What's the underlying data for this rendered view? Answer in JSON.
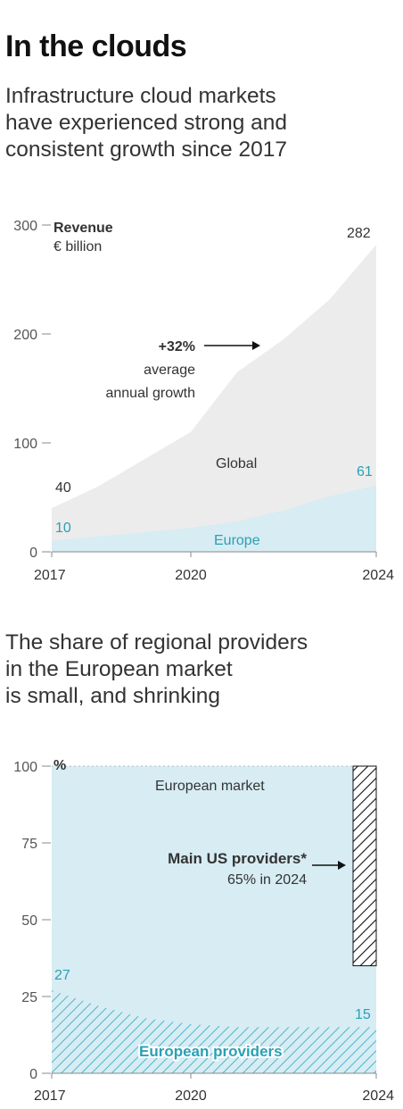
{
  "title": "In the clouds",
  "subtitle1": [
    "Infrastructure cloud markets",
    "have experienced strong and",
    "consistent growth since 2017"
  ],
  "subtitle2": [
    "The share of regional providers",
    "in the European market",
    "is small, and shrinking"
  ],
  "colors": {
    "global_fill": "#ececec",
    "europe_fill": "#d7ecf3",
    "teal_text": "#2aa0b5",
    "hatch": "#111111",
    "eu_hatch": "#4cb7cb",
    "axis": "#888888"
  },
  "chart_data": [
    {
      "type": "area",
      "ylabel": "Revenue",
      "yunit": "€ billion",
      "ylim": [
        0,
        300
      ],
      "yticks": [
        0,
        100,
        200,
        300
      ],
      "x": [
        2017,
        2018,
        2019,
        2020,
        2021,
        2022,
        2023,
        2024
      ],
      "xticks": [
        2017,
        2020,
        2024
      ],
      "series": [
        {
          "name": "Global",
          "values": [
            40,
            60,
            85,
            110,
            165,
            195,
            232,
            282
          ]
        },
        {
          "name": "Europe",
          "values": [
            10,
            14,
            18,
            22,
            28,
            38,
            51,
            61
          ]
        }
      ],
      "annotations": {
        "global_start": "40",
        "global_end": "282",
        "europe_start": "10",
        "europe_end": "61",
        "growth_value": "+32%",
        "growth_line1": "average",
        "growth_line2": "annual growth"
      }
    },
    {
      "type": "area",
      "yunit": "%",
      "ylim": [
        0,
        100
      ],
      "yticks": [
        0,
        25,
        50,
        75,
        100
      ],
      "x": [
        2017,
        2018,
        2019,
        2020,
        2021,
        2022,
        2023,
        2024
      ],
      "xticks": [
        2017,
        2020,
        2024
      ],
      "series": [
        {
          "name": "European market",
          "values": [
            100,
            100,
            100,
            100,
            100,
            100,
            100,
            100
          ]
        },
        {
          "name": "European providers",
          "values": [
            27,
            22,
            18,
            16,
            15,
            15,
            15,
            15
          ]
        },
        {
          "name": "Main US providers*",
          "values": [
            null,
            null,
            null,
            null,
            null,
            null,
            null,
            65
          ]
        }
      ],
      "annotations": {
        "european_market": "European market",
        "us_label": "Main US providers*",
        "us_sub": "65% in 2024",
        "eu_start": "27",
        "eu_end": "15",
        "eu_label": "European providers"
      }
    }
  ]
}
